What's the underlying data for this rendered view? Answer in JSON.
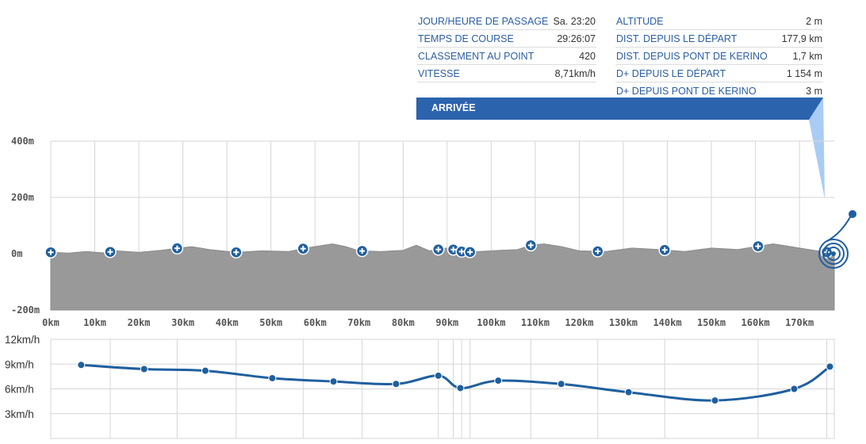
{
  "info": {
    "left": [
      {
        "label": "JOUR/HEURE DE PASSAGE",
        "value": "Sa. 23:20"
      },
      {
        "label": "TEMPS DE COURSE",
        "value": "29:26:07"
      },
      {
        "label": "CLASSEMENT AU POINT",
        "value": "420"
      },
      {
        "label": "VITESSE",
        "value": "8,71km/h"
      }
    ],
    "right": [
      {
        "label": "ALTITUDE",
        "value": "2 m"
      },
      {
        "label": "DIST. DEPUIS LE DÉPART",
        "value": "177,9 km"
      },
      {
        "label": "DIST. DEPUIS PONT DE KERINO",
        "value": "1,7 km"
      },
      {
        "label": "D+ DEPUIS LE DÉPART",
        "value": "1 154 m"
      },
      {
        "label": "D+ DEPUIS PONT DE KERINO",
        "value": "3 m"
      }
    ]
  },
  "banner": {
    "label": "ARRIVÉE"
  },
  "colors": {
    "accent": "#2b63ad",
    "line": "#1f5f9e",
    "profile_fill": "#999999",
    "grid": "#d6d6d6",
    "pointer": "#a9ccf5"
  },
  "chart_data": [
    {
      "type": "area",
      "ylim": [
        -200,
        400
      ],
      "y_ticks": [
        400,
        200,
        0,
        -200
      ],
      "y_tick_labels": [
        "400m",
        "200m",
        "0m",
        "-200m"
      ],
      "xlim": [
        0,
        177.9
      ],
      "x_ticks": [
        0,
        10,
        20,
        30,
        40,
        50,
        60,
        70,
        80,
        90,
        100,
        110,
        120,
        130,
        140,
        150,
        160,
        170
      ],
      "x_tick_labels": [
        "0km",
        "10km",
        "20km",
        "30km",
        "40km",
        "50km",
        "60km",
        "70km",
        "80km",
        "90km",
        "100km",
        "110km",
        "120km",
        "130km",
        "140km",
        "150km",
        "160km",
        "170km"
      ],
      "x": [
        0,
        4,
        8,
        12,
        15,
        20,
        25,
        28,
        32,
        36,
        42,
        48,
        54,
        58,
        62,
        64,
        67,
        70,
        75,
        80,
        83,
        86,
        90,
        94,
        100,
        106,
        109,
        112,
        116,
        120,
        126,
        132,
        138,
        144,
        150,
        156,
        160,
        164,
        166,
        170,
        174,
        177.9
      ],
      "y": [
        5,
        2,
        8,
        3,
        10,
        5,
        12,
        18,
        25,
        15,
        5,
        10,
        8,
        20,
        30,
        35,
        25,
        10,
        8,
        12,
        30,
        10,
        20,
        5,
        10,
        15,
        30,
        35,
        25,
        10,
        8,
        20,
        15,
        8,
        20,
        15,
        25,
        35,
        30,
        20,
        10,
        2
      ],
      "waypoints_km": [
        0,
        13.5,
        28.7,
        42.1,
        57.3,
        70.7,
        88,
        91.4,
        93.3,
        95.2,
        109,
        124.2,
        139.4,
        160.6,
        176.2
      ],
      "finish_km": 177.9
    },
    {
      "type": "line",
      "ylim": [
        0,
        12
      ],
      "y_ticks": [
        12,
        9,
        6,
        3
      ],
      "y_tick_labels": [
        "12km/h",
        "9km/h",
        "6km/h",
        "3km/h"
      ],
      "x": [
        6.9,
        21.2,
        35.1,
        50.3,
        64.2,
        78.4,
        88,
        93,
        101.6,
        115.9,
        131.2,
        150.8,
        168.8,
        176.9
      ],
      "y": [
        8.9,
        8.4,
        8.2,
        7.3,
        6.9,
        6.6,
        7.6,
        6.1,
        7.0,
        6.6,
        5.6,
        4.6,
        6.0,
        8.7
      ]
    }
  ]
}
